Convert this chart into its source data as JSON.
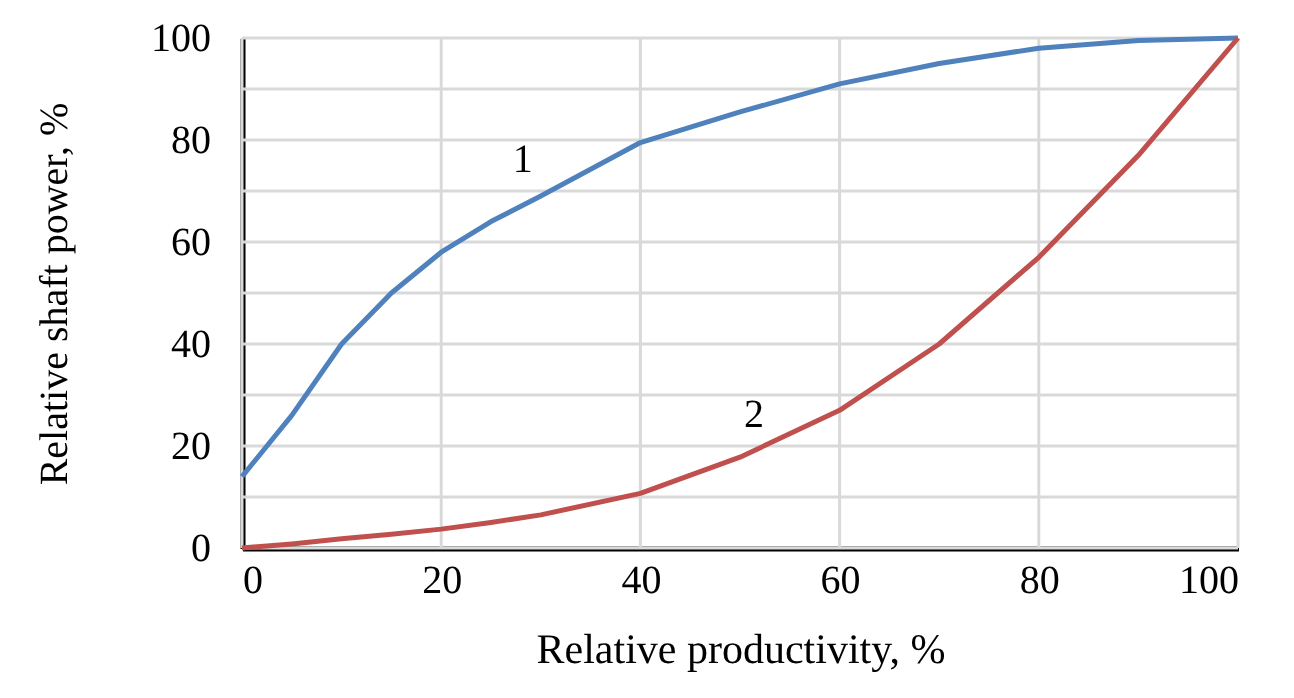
{
  "chart_data": {
    "type": "line",
    "xlabel": "Relative productivity, %",
    "ylabel": "Relative shaft power, %",
    "x": [
      0,
      5,
      10,
      15,
      20,
      25,
      30,
      40,
      50,
      60,
      70,
      80,
      90,
      100
    ],
    "series": [
      {
        "name": "1",
        "color": "#4f81bd",
        "values": [
          14,
          26,
          40,
          50,
          58,
          64,
          69,
          79.5,
          85.5,
          91,
          95,
          98,
          99.5,
          100
        ]
      },
      {
        "name": "2",
        "color": "#c0504d",
        "values": [
          0,
          0.8,
          1.8,
          2.7,
          3.7,
          5,
          6.5,
          10.7,
          17.8,
          27,
          40,
          57,
          77,
          100
        ]
      }
    ],
    "xlim": [
      0,
      100
    ],
    "xticks": [
      0,
      20,
      40,
      60,
      80,
      100
    ],
    "ylim": [
      0,
      100
    ],
    "yticks": [
      0,
      {
        "value": 10,
        "label": null
      },
      20,
      {
        "value": 30,
        "label": null
      },
      40,
      {
        "value": 50,
        "label": null
      },
      60,
      {
        "value": 70,
        "label": null
      },
      80,
      {
        "value": 90,
        "label": null
      },
      100
    ],
    "grid": true,
    "marker": "none",
    "line_style": "solid"
  }
}
